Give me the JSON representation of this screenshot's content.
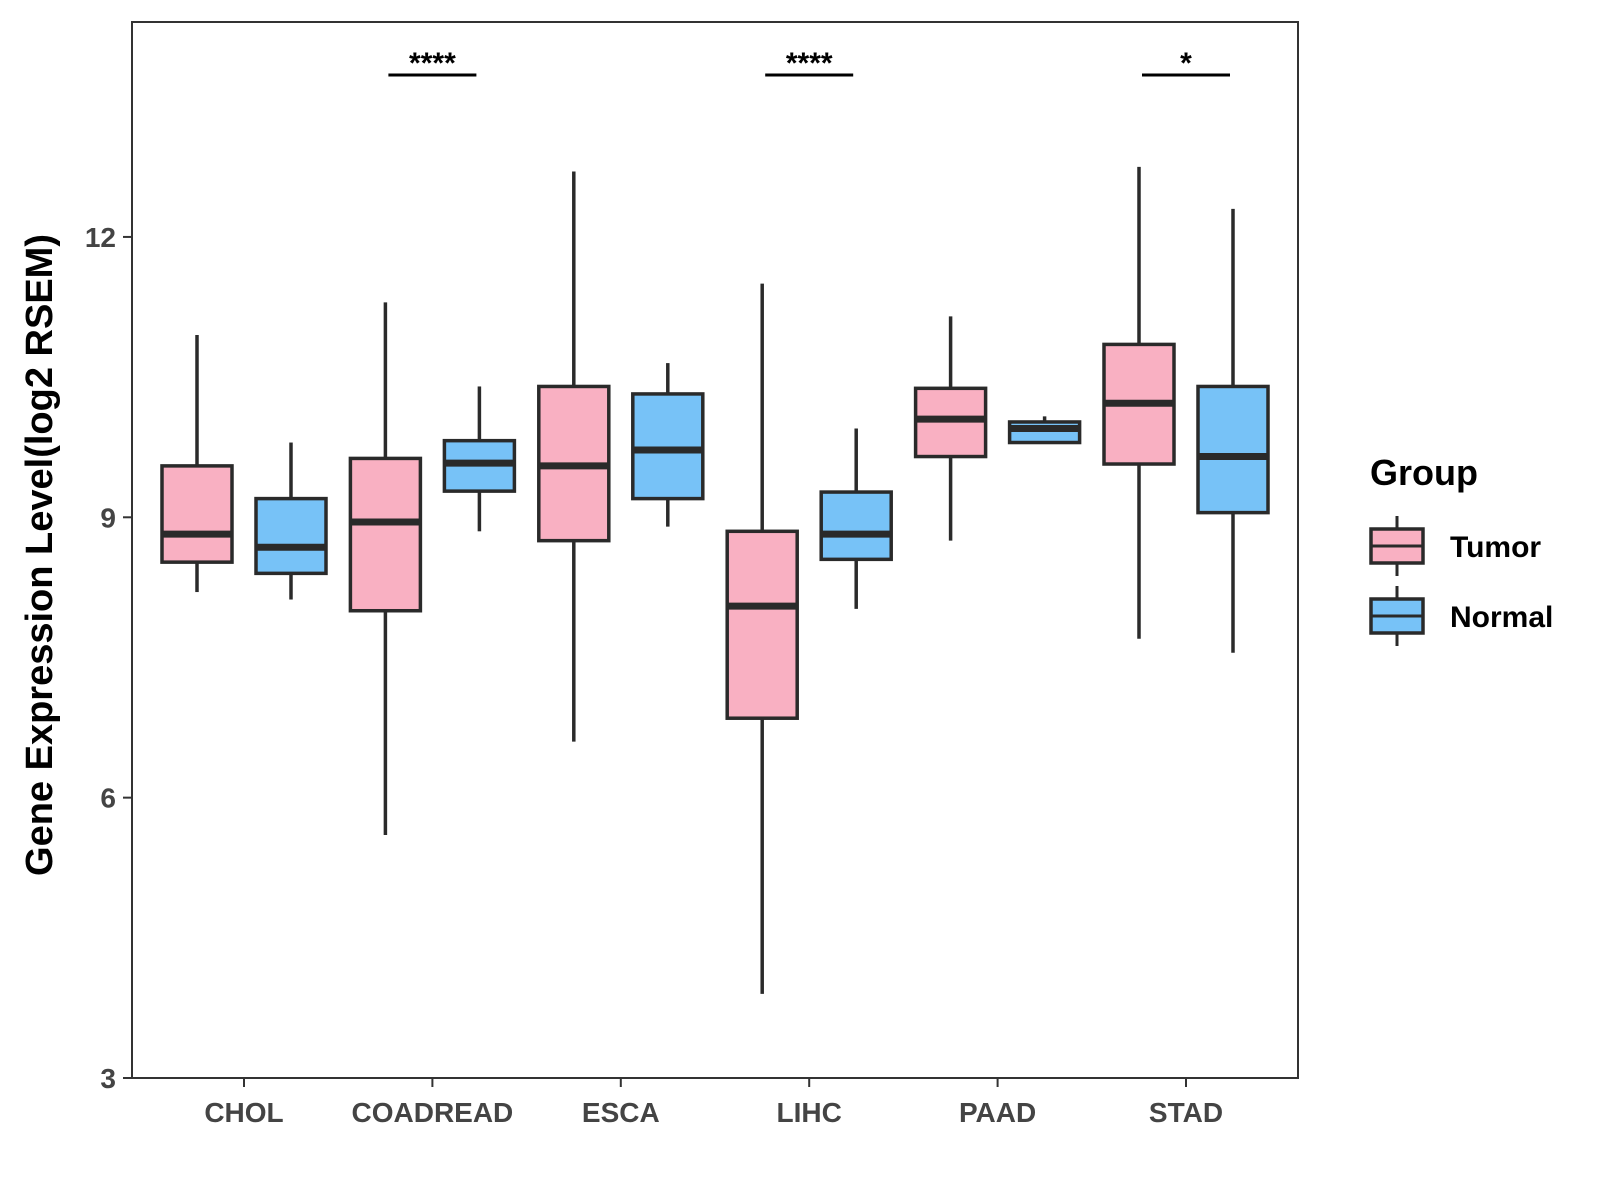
{
  "chart_data": {
    "type": "boxplot",
    "title": "",
    "xlabel": "",
    "ylabel": "Gene Expression Level(log2 RSEM)",
    "ylim": [
      3,
      14.3
    ],
    "yticks": [
      3,
      6,
      9,
      12
    ],
    "ytick_labels": [
      "3",
      "6",
      "9",
      "12"
    ],
    "categories": [
      "CHOL",
      "COADREAD",
      "ESCA",
      "LIHC",
      "PAAD",
      "STAD"
    ],
    "legend": {
      "title": "Group",
      "placement": "right",
      "entries": [
        "Tumor",
        "Normal"
      ]
    },
    "series": [
      {
        "name": "Tumor",
        "color": "#F9B0C2",
        "boxes": [
          {
            "category": "CHOL",
            "min": 8.2,
            "q1": 8.52,
            "median": 8.82,
            "q3": 9.55,
            "max": 10.95
          },
          {
            "category": "COADREAD",
            "min": 5.6,
            "q1": 8.0,
            "median": 8.95,
            "q3": 9.63,
            "max": 11.3
          },
          {
            "category": "ESCA",
            "min": 6.6,
            "q1": 8.75,
            "median": 9.55,
            "q3": 10.4,
            "max": 12.7
          },
          {
            "category": "LIHC",
            "min": 3.9,
            "q1": 6.85,
            "median": 8.05,
            "q3": 8.85,
            "max": 11.5
          },
          {
            "category": "PAAD",
            "min": 8.75,
            "q1": 9.65,
            "median": 10.05,
            "q3": 10.38,
            "max": 11.15
          },
          {
            "category": "STAD",
            "min": 7.7,
            "q1": 9.57,
            "median": 10.22,
            "q3": 10.85,
            "max": 12.75
          }
        ]
      },
      {
        "name": "Normal",
        "color": "#77C2F7",
        "boxes": [
          {
            "category": "CHOL",
            "min": 8.12,
            "q1": 8.4,
            "median": 8.68,
            "q3": 9.2,
            "max": 9.8
          },
          {
            "category": "COADREAD",
            "min": 8.85,
            "q1": 9.28,
            "median": 9.58,
            "q3": 9.82,
            "max": 10.4
          },
          {
            "category": "ESCA",
            "min": 8.9,
            "q1": 9.2,
            "median": 9.72,
            "q3": 10.32,
            "max": 10.65
          },
          {
            "category": "LIHC",
            "min": 8.02,
            "q1": 8.55,
            "median": 8.82,
            "q3": 9.27,
            "max": 9.95
          },
          {
            "category": "PAAD",
            "min": 9.8,
            "q1": 9.8,
            "median": 9.95,
            "q3": 10.02,
            "max": 10.08
          },
          {
            "category": "STAD",
            "min": 7.55,
            "q1": 9.05,
            "median": 9.65,
            "q3": 10.4,
            "max": 12.3
          }
        ]
      }
    ],
    "significance": [
      {
        "category": "COADREAD",
        "label": "****"
      },
      {
        "category": "LIHC",
        "label": "****"
      },
      {
        "category": "STAD",
        "label": "*"
      }
    ],
    "grid": false
  }
}
